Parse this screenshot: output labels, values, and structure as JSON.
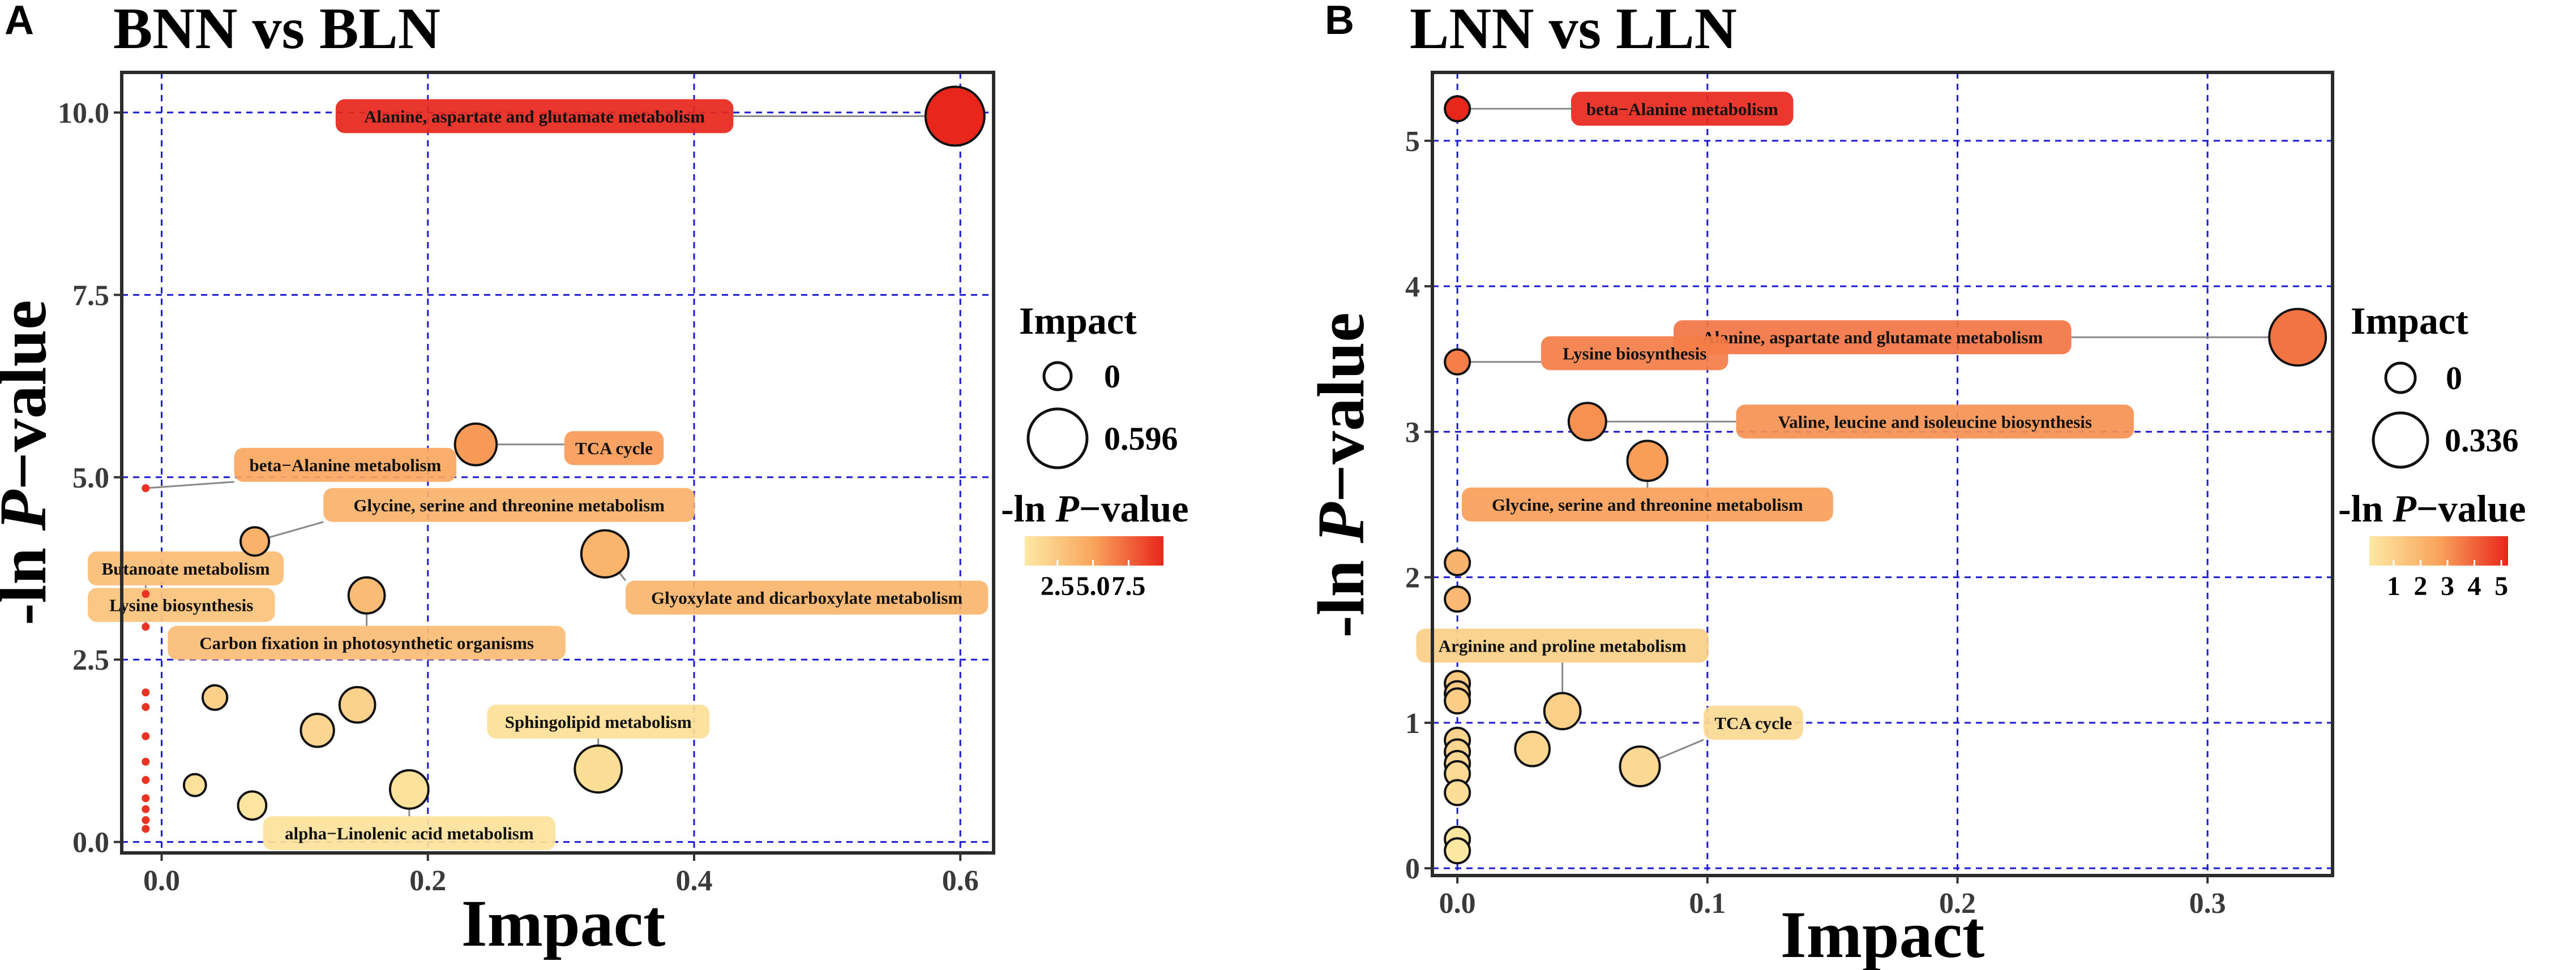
{
  "chart_data": [
    {
      "type": "scatter",
      "panel_label": "A",
      "title": "BNN vs BLN",
      "xlabel": "Impact",
      "ylabel": "-ln P−value",
      "xlim": [
        -0.03,
        0.625
      ],
      "ylim": [
        -0.15,
        10.55
      ],
      "x_ticks": [
        0.0,
        0.2,
        0.4,
        0.6
      ],
      "x_tick_labels": [
        "0.0",
        "0.2",
        "0.4",
        "0.6"
      ],
      "y_ticks": [
        0.0,
        2.5,
        5.0,
        7.5,
        10.0
      ],
      "y_tick_labels": [
        "0.0",
        "2.5",
        "5.0",
        "7.5",
        "10.0"
      ],
      "grid": true,
      "size_legend": {
        "title": "Impact",
        "entries": [
          {
            "label": "0",
            "value": 0.0
          },
          {
            "label": "0.596",
            "value": 0.596
          }
        ]
      },
      "color_legend": {
        "title": "-ln P−value",
        "ticks": [
          2.5,
          5.0,
          7.5
        ],
        "tick_labels": [
          "2.5",
          "5.0",
          "7.5"
        ],
        "range": [
          0.2,
          9.95
        ]
      },
      "points": [
        {
          "x": 0.596,
          "y": 9.95,
          "label": "Alanine, aspartate and glutamate metabolism",
          "label_dx": -0.175,
          "label_dy": 0.0
        },
        {
          "x": 0.236,
          "y": 5.45,
          "label": "TCA cycle",
          "label_dx": 0.075,
          "label_dy": -0.05
        },
        {
          "x": -0.012,
          "y": 4.85,
          "label": "beta−Alanine metabolism",
          "label_dx": 0.075,
          "label_dy": 0.32
        },
        {
          "x": 0.07,
          "y": 4.12,
          "label": "Glycine, serine and threonine metabolism",
          "label_dx": 0.06,
          "label_dy": 0.5
        },
        {
          "x": 0.333,
          "y": 3.95,
          "label": "Glyoxylate and dicarboxylate metabolism",
          "label_dx": 0.024,
          "label_dy": -0.6
        },
        {
          "x": -0.012,
          "y": 3.4,
          "label": "Butanoate metabolism",
          "label_dx": 0.0,
          "label_dy": 0.35
        },
        {
          "x": 0.154,
          "y": 3.38,
          "label": "Carbon fixation in photosynthetic organisms",
          "label_dx": 0.0,
          "label_dy": -0.65
        },
        {
          "x": -0.012,
          "y": 2.95,
          "label": "Lysine biosynthesis",
          "label_dx": 0.0,
          "label_dy": 0.3
        },
        {
          "x": 0.04,
          "y": 1.98
        },
        {
          "x": 0.147,
          "y": 1.88
        },
        {
          "x": 0.117,
          "y": 1.53
        },
        {
          "x": 0.328,
          "y": 1.0,
          "label": "Sphingolipid metabolism",
          "label_dx": 0.0,
          "label_dy": 0.65
        },
        {
          "x": 0.025,
          "y": 0.78
        },
        {
          "x": 0.186,
          "y": 0.72,
          "label": "alpha−Linolenic acid metabolism",
          "label_dx": 0.0,
          "label_dy": -0.6
        },
        {
          "x": 0.068,
          "y": 0.5
        },
        {
          "x": -0.012,
          "y": 2.05
        },
        {
          "x": -0.012,
          "y": 1.85
        },
        {
          "x": -0.012,
          "y": 1.45
        },
        {
          "x": -0.012,
          "y": 1.1
        },
        {
          "x": -0.012,
          "y": 0.85
        },
        {
          "x": -0.012,
          "y": 0.6
        },
        {
          "x": -0.012,
          "y": 0.45
        },
        {
          "x": -0.012,
          "y": 0.3
        },
        {
          "x": -0.012,
          "y": 0.18
        }
      ]
    },
    {
      "type": "scatter",
      "panel_label": "B",
      "title": "LNN vs LLN",
      "xlabel": "Impact",
      "ylabel": "-ln P−value",
      "xlim": [
        -0.01,
        0.35
      ],
      "ylim": [
        -0.05,
        5.47
      ],
      "x_ticks": [
        0.0,
        0.1,
        0.2,
        0.3
      ],
      "x_tick_labels": [
        "0.0",
        "0.1",
        "0.2",
        "0.3"
      ],
      "y_ticks": [
        0,
        1,
        2,
        3,
        4,
        5
      ],
      "y_tick_labels": [
        "0",
        "1",
        "2",
        "3",
        "4",
        "5"
      ],
      "grid": true,
      "size_legend": {
        "title": "Impact",
        "entries": [
          {
            "label": "0",
            "value": 0.0
          },
          {
            "label": "0.336",
            "value": 0.336
          }
        ]
      },
      "color_legend": {
        "title": "-ln P−value",
        "ticks": [
          1,
          2,
          3,
          4,
          5
        ],
        "tick_labels": [
          "1",
          "2",
          "3",
          "4",
          "5"
        ],
        "range": [
          0.1,
          5.25
        ]
      },
      "points": [
        {
          "x": 0.0,
          "y": 5.22,
          "label": "beta−Alanine metabolism",
          "label_dx": 0.05,
          "label_dy": 0.0
        },
        {
          "x": 0.336,
          "y": 3.65,
          "label": "Alanine, aspartate and glutamate metabolism",
          "label_dx": -0.095,
          "label_dy": 0.0
        },
        {
          "x": 0.0,
          "y": 3.48,
          "label": "Lysine biosynthesis",
          "label_dx": 0.038,
          "label_dy": 0.06
        },
        {
          "x": 0.052,
          "y": 3.07,
          "label": "Valine, leucine and isoleucine biosynthesis",
          "label_dx": 0.064,
          "label_dy": 0.0
        },
        {
          "x": 0.076,
          "y": 2.8,
          "label": "Glycine, serine and threonine metabolism",
          "label_dx": 0.0,
          "label_dy": -0.3
        },
        {
          "x": 0.0,
          "y": 2.1
        },
        {
          "x": 0.0,
          "y": 1.85
        },
        {
          "x": 0.0,
          "y": 1.27
        },
        {
          "x": 0.0,
          "y": 1.2
        },
        {
          "x": 0.0,
          "y": 1.15
        },
        {
          "x": 0.042,
          "y": 1.08,
          "label": "Arginine and proline metabolism",
          "label_dx": 0.0,
          "label_dy": 0.45
        },
        {
          "x": 0.0,
          "y": 0.88
        },
        {
          "x": 0.0,
          "y": 0.8
        },
        {
          "x": 0.0,
          "y": 0.72
        },
        {
          "x": 0.0,
          "y": 0.65
        },
        {
          "x": 0.03,
          "y": 0.82
        },
        {
          "x": 0.073,
          "y": 0.7,
          "label": "TCA cycle",
          "label_dx": 0.03,
          "label_dy": 0.3
        },
        {
          "x": 0.0,
          "y": 0.52
        },
        {
          "x": 0.0,
          "y": 0.2
        },
        {
          "x": 0.0,
          "y": 0.12
        }
      ]
    }
  ]
}
